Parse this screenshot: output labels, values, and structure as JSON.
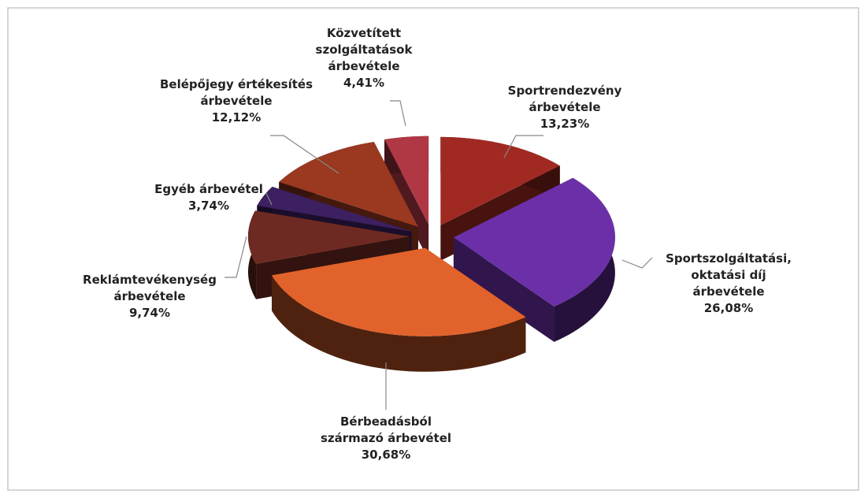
{
  "chart_data": {
    "type": "pie",
    "categories": [
      "Sportrendezvény\nárbevétele",
      "Sportszolgáltatási,\noktatási díj árbevétele",
      "Bérbeadásból\nszármazó árbevétel",
      "Reklámtevékenység\nárbevétele",
      "Egyéb árbevétel",
      "Belépőjegy értékesítés\nárbevétele",
      "Közvetített\nszolgáltatások\nárbevétele"
    ],
    "values": [
      13.23,
      26.08,
      30.68,
      9.74,
      3.74,
      12.12,
      4.41
    ],
    "value_labels": [
      "13,23%",
      "26,08%",
      "30,68%",
      "9,74%",
      "3,74%",
      "12,12%",
      "4,41%"
    ],
    "colors": [
      "#a02a22",
      "#6b30a8",
      "#e2622c",
      "#6e2a22",
      "#3c2060",
      "#9a3820",
      "#b03844"
    ]
  }
}
